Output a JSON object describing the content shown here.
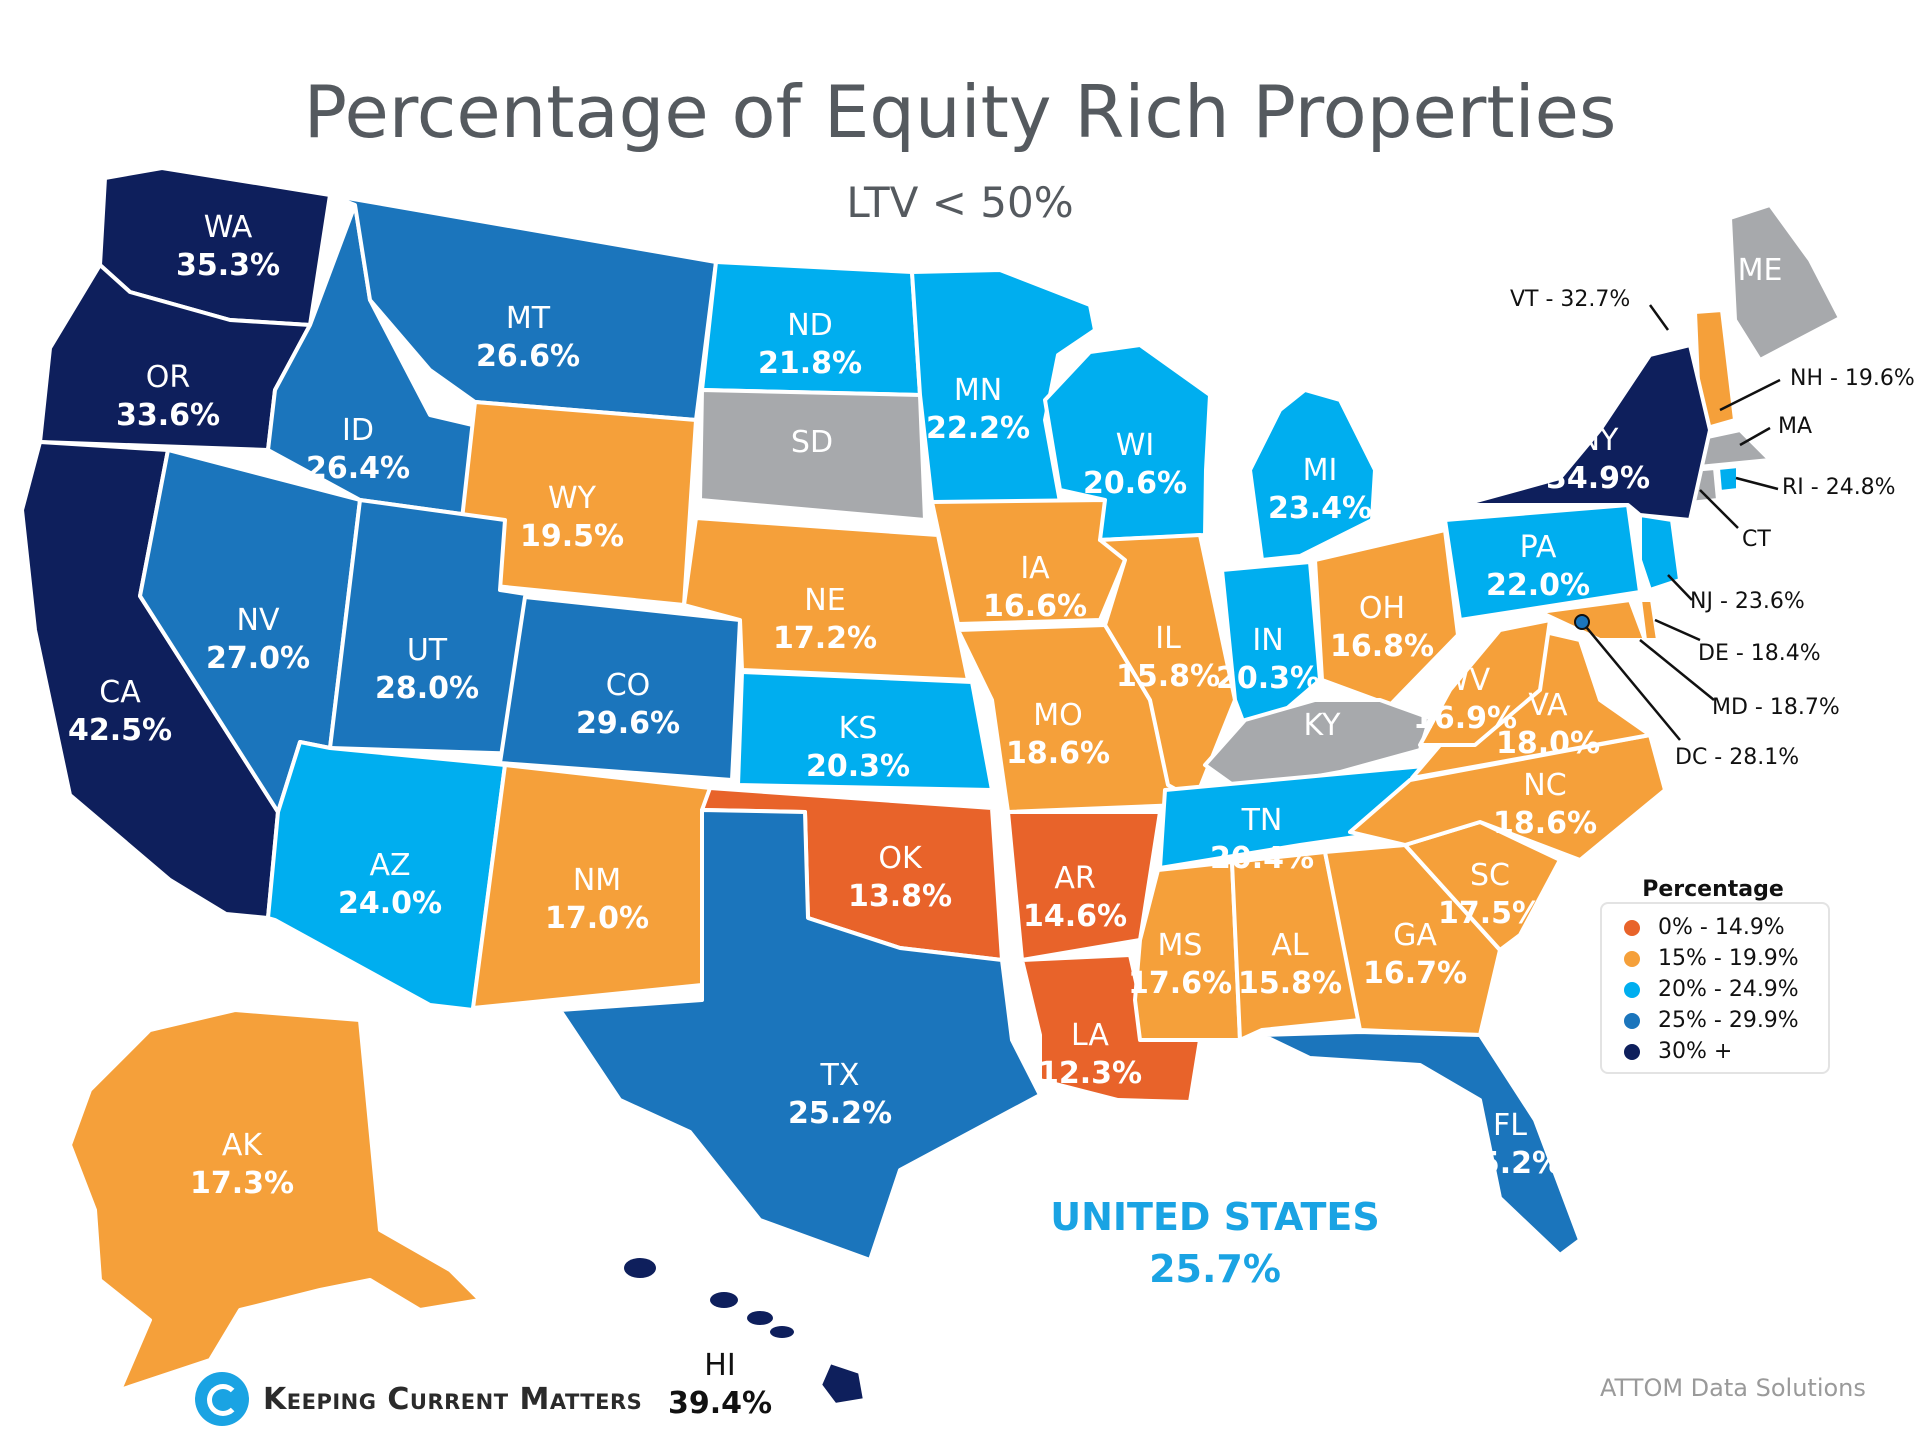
{
  "title": "Percentage of Equity Rich Properties",
  "subtitle": "LTV < 50%",
  "colors": {
    "range_0": "#e8632a",
    "range_15": "#f5a03a",
    "range_20": "#00aeef",
    "range_25": "#1b75bc",
    "range_30": "#0e1f5c",
    "no_data": "#a7a9ac"
  },
  "legend": {
    "title": "Percentage",
    "items": [
      {
        "label": "0% - 14.9%",
        "color": "#e8632a"
      },
      {
        "label": "15% - 19.9%",
        "color": "#f5a03a"
      },
      {
        "label": "20% - 24.9%",
        "color": "#00aeef"
      },
      {
        "label": "25% - 29.9%",
        "color": "#1b75bc"
      },
      {
        "label": "30% +",
        "color": "#0e1f5c"
      }
    ]
  },
  "states": [
    {
      "abbr": "WA",
      "value": "35.3%"
    },
    {
      "abbr": "OR",
      "value": "33.6%"
    },
    {
      "abbr": "CA",
      "value": "42.5%"
    },
    {
      "abbr": "NV",
      "value": "27.0%"
    },
    {
      "abbr": "ID",
      "value": "26.4%"
    },
    {
      "abbr": "MT",
      "value": "26.6%"
    },
    {
      "abbr": "WY",
      "value": "19.5%"
    },
    {
      "abbr": "UT",
      "value": "28.0%"
    },
    {
      "abbr": "AZ",
      "value": "24.0%"
    },
    {
      "abbr": "CO",
      "value": "29.6%"
    },
    {
      "abbr": "NM",
      "value": "17.0%"
    },
    {
      "abbr": "ND",
      "value": "21.8%"
    },
    {
      "abbr": "SD",
      "value": ""
    },
    {
      "abbr": "NE",
      "value": "17.2%"
    },
    {
      "abbr": "KS",
      "value": "20.3%"
    },
    {
      "abbr": "OK",
      "value": "13.8%"
    },
    {
      "abbr": "TX",
      "value": "25.2%"
    },
    {
      "abbr": "MN",
      "value": "22.2%"
    },
    {
      "abbr": "IA",
      "value": "16.6%"
    },
    {
      "abbr": "MO",
      "value": "18.6%"
    },
    {
      "abbr": "AR",
      "value": "14.6%"
    },
    {
      "abbr": "LA",
      "value": "12.3%"
    },
    {
      "abbr": "WI",
      "value": "20.6%"
    },
    {
      "abbr": "IL",
      "value": "15.8%"
    },
    {
      "abbr": "MI",
      "value": "23.4%"
    },
    {
      "abbr": "IN",
      "value": "20.3%"
    },
    {
      "abbr": "OH",
      "value": "16.8%"
    },
    {
      "abbr": "KY",
      "value": ""
    },
    {
      "abbr": "TN",
      "value": "20.4%"
    },
    {
      "abbr": "MS",
      "value": "17.6%"
    },
    {
      "abbr": "AL",
      "value": "15.8%"
    },
    {
      "abbr": "GA",
      "value": "16.7%"
    },
    {
      "abbr": "FL",
      "value": "25.2%"
    },
    {
      "abbr": "SC",
      "value": "17.5%"
    },
    {
      "abbr": "NC",
      "value": "18.6%"
    },
    {
      "abbr": "VA",
      "value": "18.0%"
    },
    {
      "abbr": "WV",
      "value": "16.9%"
    },
    {
      "abbr": "PA",
      "value": "22.0%"
    },
    {
      "abbr": "NY",
      "value": "34.9%"
    },
    {
      "abbr": "ME",
      "value": ""
    },
    {
      "abbr": "AK",
      "value": "17.3%"
    },
    {
      "abbr": "HI",
      "value": "39.4%"
    }
  ],
  "callouts": [
    {
      "text": "VT - 32.7%"
    },
    {
      "text": "NH - 19.6%"
    },
    {
      "text": "MA"
    },
    {
      "text": "RI - 24.8%"
    },
    {
      "text": "CT"
    },
    {
      "text": "NJ - 23.6%"
    },
    {
      "text": "DE - 18.4%"
    },
    {
      "text": "MD - 18.7%"
    },
    {
      "text": "DC - 28.1%"
    }
  ],
  "us_total": {
    "name": "UNITED STATES",
    "value": "25.7%"
  },
  "brand": "Keeping Current Matters",
  "source": "ATTOM Data Solutions"
}
